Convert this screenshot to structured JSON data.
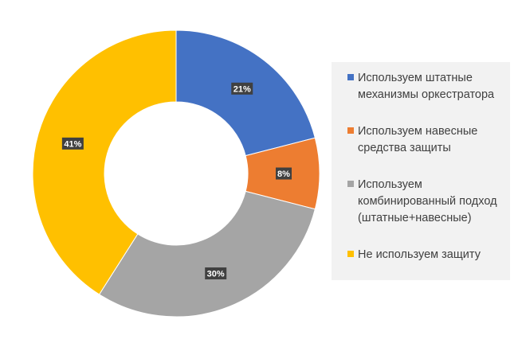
{
  "chart_data": {
    "type": "pie",
    "donut": true,
    "title": "",
    "legend_position": "right",
    "labels": [
      "Используем штатные механизмы оркестратора",
      "Используем навесные средства защиты",
      "Используем комбинированный подход (штатные+навесные)",
      "Не используем защиту"
    ],
    "values": [
      21,
      8,
      30,
      41
    ],
    "value_labels": [
      "21%",
      "8%",
      "30%",
      "41%"
    ],
    "colors": [
      "#4472c4",
      "#ed7d31",
      "#a5a5a5",
      "#ffc000"
    ]
  }
}
